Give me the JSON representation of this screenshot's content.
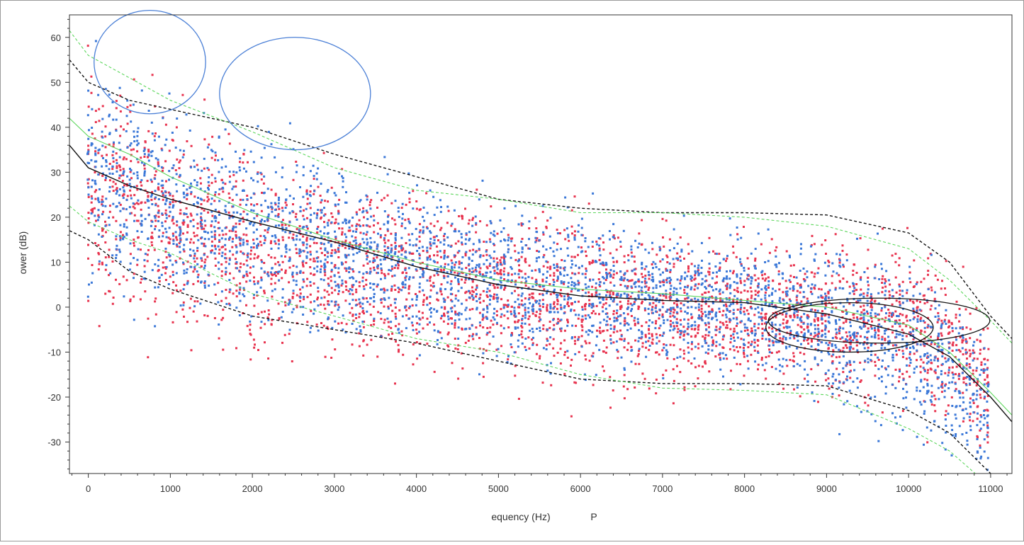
{
  "chart_data": {
    "type": "scatter",
    "xlabel": "equency (Hz)",
    "xlabel_suffix": "P",
    "ylabel": "ower (dB)",
    "xlim": [
      -230,
      11260
    ],
    "ylim": [
      -37,
      65
    ],
    "xticks": [
      0,
      1000,
      2000,
      3000,
      4000,
      5000,
      6000,
      7000,
      8000,
      9000,
      10000,
      11000
    ],
    "yticks": [
      60,
      50,
      40,
      30,
      20,
      10,
      0,
      -10,
      -20,
      -30
    ],
    "grid": false,
    "colors": {
      "series_red": "#e8344f",
      "series_blue": "#3b78d8",
      "fit_black": "#111111",
      "fit_green": "#5cd65c",
      "annotation_blue": "#4a7fd6",
      "annotation_black": "#111111"
    },
    "series": [
      {
        "marker": "square",
        "color": "#e8344f",
        "generator": "dense",
        "center_x": [
          -230,
          0,
          1000,
          2000,
          3000,
          4000,
          5000,
          6000,
          7000,
          8000,
          9000,
          10000,
          10500,
          11000,
          11260
        ],
        "center_y": [
          36,
          26,
          20,
          13,
          9,
          7,
          4,
          1,
          -1,
          -1,
          -2,
          -4,
          -8,
          -20,
          -26
        ],
        "spread_y": [
          14,
          14,
          13,
          12,
          11,
          11,
          10,
          10,
          9,
          9,
          9,
          9,
          9,
          8,
          8
        ]
      },
      {
        "marker": "square",
        "color": "#3b78d8",
        "generator": "dense",
        "center_x": [
          -230,
          0,
          1000,
          2000,
          3000,
          4000,
          5000,
          6000,
          7000,
          8000,
          9000,
          10000,
          10500,
          11000,
          11260
        ],
        "center_y": [
          40,
          30,
          22,
          17,
          13,
          9,
          6,
          3,
          2,
          1,
          -4,
          -9,
          -14,
          -24,
          -30
        ],
        "spread_y": [
          13,
          13,
          12,
          11,
          10,
          10,
          9,
          9,
          8,
          8,
          9,
          10,
          10,
          9,
          9
        ]
      }
    ],
    "fits": [
      {
        "style": "solid",
        "color": "#111111",
        "x": [
          -230,
          0,
          500,
          1000,
          2000,
          3000,
          4000,
          5000,
          6000,
          7000,
          8000,
          9000,
          10000,
          10500,
          11000,
          11260
        ],
        "y": [
          36,
          31,
          27,
          24,
          19,
          14.5,
          9,
          5,
          2.5,
          1.5,
          1,
          -1.5,
          -6,
          -11,
          -20,
          -25.5
        ]
      },
      {
        "style": "dashed",
        "color": "#111111",
        "x": [
          -230,
          0,
          500,
          1000,
          2000,
          3000,
          4000,
          5000,
          6000,
          7000,
          8000,
          9000,
          10000,
          10500,
          11000,
          11260
        ],
        "y": [
          55,
          50,
          46,
          44,
          40,
          34,
          29,
          24,
          22,
          21,
          21,
          20.5,
          16.5,
          10,
          -2,
          -7
        ]
      },
      {
        "style": "dashed",
        "color": "#111111",
        "x": [
          -230,
          0,
          500,
          1000,
          2000,
          3000,
          4000,
          5000,
          6000,
          7000,
          8000,
          9000,
          10000,
          10500,
          11000,
          11260
        ],
        "y": [
          17,
          15,
          8,
          4,
          -2,
          -5,
          -8,
          -12,
          -16,
          -17,
          -17,
          -17.5,
          -23,
          -28,
          -37,
          -40
        ]
      },
      {
        "style": "dashed",
        "color": "#5cd65c",
        "x": [
          -230,
          0,
          500,
          1000,
          2000,
          3000,
          4000,
          5000,
          6000,
          7000,
          8000,
          9000,
          10000,
          10500,
          11000,
          11260
        ],
        "y": [
          61.5,
          56,
          51,
          46,
          39,
          31,
          26,
          24,
          21,
          21,
          20,
          18,
          13,
          6,
          -3,
          -8
        ]
      },
      {
        "style": "dashed",
        "color": "#5cd65c",
        "x": [
          -230,
          0,
          500,
          1000,
          2000,
          3000,
          4000,
          5000,
          6000,
          7000,
          8000,
          9000,
          10000,
          10500,
          11000,
          11260
        ],
        "y": [
          22.5,
          19,
          15,
          12,
          3,
          -2,
          -7,
          -10,
          -15,
          -18,
          -18.5,
          -19.5,
          -27,
          -32,
          -40,
          -44
        ]
      },
      {
        "style": "solid",
        "color": "#5cd65c",
        "x": [
          -230,
          0,
          500,
          1000,
          2000,
          3000,
          4000,
          5000,
          6000,
          7000,
          8000,
          9000,
          10000,
          10500,
          11000,
          11260
        ],
        "y": [
          42,
          38,
          34,
          29,
          21,
          15,
          10,
          6,
          4,
          3,
          1.5,
          0,
          -4,
          -10,
          -19,
          -24
        ]
      }
    ],
    "annotations": [
      {
        "shape": "ellipse",
        "color": "#4a7fd6",
        "cx": 750,
        "cy": 54.5,
        "rx": 680,
        "ry": 11.5
      },
      {
        "shape": "ellipse",
        "color": "#4a7fd6",
        "cx": 2520,
        "cy": 47.5,
        "rx": 920,
        "ry": 12.5
      },
      {
        "shape": "ellipse",
        "color": "#111111",
        "cx": 9640,
        "cy": -3,
        "rx": 1350,
        "ry": 5
      },
      {
        "shape": "ellipse",
        "color": "#111111",
        "cx": 9280,
        "cy": -4.5,
        "rx": 1020,
        "ry": 5.5
      }
    ]
  }
}
